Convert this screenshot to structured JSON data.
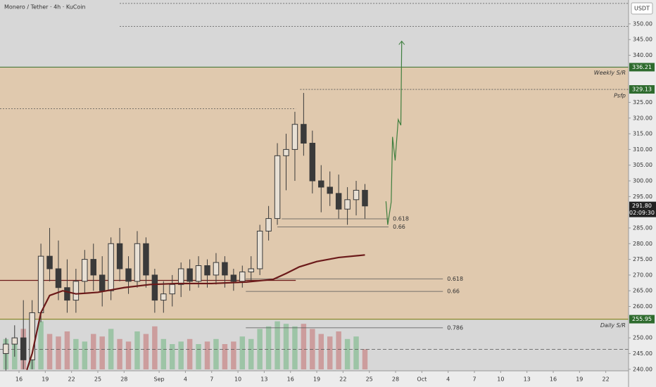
{
  "chart_data": {
    "type": "candlestick",
    "title": "Monero / Tether · 4h · KuCoin",
    "currency": "USDT",
    "xlim": [
      -2.17,
      69.6
    ],
    "ylim": [
      239.5,
      357.6
    ],
    "xticks": [
      {
        "value": 0,
        "label": "16"
      },
      {
        "value": 3,
        "label": "19"
      },
      {
        "value": 6,
        "label": "22"
      },
      {
        "value": 9,
        "label": "25"
      },
      {
        "value": 12,
        "label": "28"
      },
      {
        "value": 16,
        "label": "Sep"
      },
      {
        "value": 19,
        "label": "4"
      },
      {
        "value": 22,
        "label": "7"
      },
      {
        "value": 25,
        "label": "10"
      },
      {
        "value": 28,
        "label": "13"
      },
      {
        "value": 31,
        "label": "16"
      },
      {
        "value": 34,
        "label": "19"
      },
      {
        "value": 37,
        "label": "22"
      },
      {
        "value": 40,
        "label": "25"
      },
      {
        "value": 43,
        "label": "28"
      },
      {
        "value": 46,
        "label": "Oct"
      },
      {
        "value": 49,
        "label": "4"
      },
      {
        "value": 52,
        "label": "7"
      },
      {
        "value": 55,
        "label": "10"
      },
      {
        "value": 58,
        "label": "13"
      },
      {
        "value": 61,
        "label": "16"
      },
      {
        "value": 64,
        "label": "19"
      },
      {
        "value": 67,
        "label": "22"
      }
    ],
    "yticks": [
      {
        "value": 240,
        "label": "240.00"
      },
      {
        "value": 245,
        "label": "245.00"
      },
      {
        "value": 250,
        "label": "250.00"
      },
      {
        "value": 260,
        "label": "260.00"
      },
      {
        "value": 265,
        "label": "265.00"
      },
      {
        "value": 270,
        "label": "270.00"
      },
      {
        "value": 275,
        "label": "275.00"
      },
      {
        "value": 280,
        "label": "280.00"
      },
      {
        "value": 285,
        "label": "285.00"
      },
      {
        "value": 295,
        "label": "295.00"
      },
      {
        "value": 300,
        "label": "300.00"
      },
      {
        "value": 305,
        "label": "305.00"
      },
      {
        "value": 310,
        "label": "310.00"
      },
      {
        "value": 315,
        "label": "315.00"
      },
      {
        "value": 320,
        "label": "320.00"
      },
      {
        "value": 325,
        "label": "325.00"
      },
      {
        "value": 340,
        "label": "340.00"
      },
      {
        "value": 345,
        "label": "345.00"
      },
      {
        "value": 350,
        "label": "350.00"
      }
    ],
    "candle_color": "#3a3a3a",
    "volume_up_color": "#8fbf9a",
    "volume_down_color": "#c98f8f",
    "zone_color": "rgba(232,190,140,0.55)",
    "x": [
      -1.5,
      -0.5,
      0.5,
      1.5,
      2.5,
      3.5,
      4.5,
      5.5,
      6.5,
      7.5,
      8.5,
      9.5,
      10.5,
      11.5,
      12.5,
      13.5,
      14.5,
      15.5,
      16.5,
      17.5,
      18.5,
      19.5,
      20.5,
      21.5,
      22.5,
      23.5,
      24.5,
      25.5,
      26.5,
      27.5,
      28.5,
      29.5,
      30.5,
      31.5,
      32.5,
      33.5,
      34.5,
      35.5,
      36.5,
      37.5,
      38.5,
      39.5
    ],
    "open": [
      245,
      248,
      250,
      243,
      258,
      276,
      272,
      266,
      262,
      268,
      275,
      270,
      265,
      280,
      272,
      268,
      280,
      270,
      262,
      264,
      267,
      272,
      268,
      273,
      270,
      274,
      270,
      268,
      271,
      272,
      284,
      288,
      308,
      310,
      318,
      312,
      300,
      298,
      296,
      291,
      294,
      297
    ],
    "high": [
      250,
      254,
      262,
      262,
      280,
      285,
      281,
      275,
      272,
      278,
      280,
      276,
      282,
      285,
      276,
      284,
      282,
      272,
      268,
      270,
      274,
      275,
      276,
      275,
      277,
      276,
      272,
      273,
      276,
      286,
      292,
      312,
      315,
      322,
      328,
      316,
      305,
      303,
      302,
      298,
      300,
      299
    ],
    "low": [
      238,
      244,
      240,
      240,
      255,
      268,
      262,
      258,
      258,
      264,
      265,
      260,
      262,
      268,
      264,
      266,
      266,
      258,
      258,
      260,
      263,
      265,
      266,
      266,
      267,
      266,
      265,
      266,
      268,
      270,
      281,
      286,
      297,
      300,
      308,
      296,
      290,
      292,
      288,
      286,
      289,
      288
    ],
    "close": [
      248,
      250,
      243,
      258,
      276,
      272,
      266,
      262,
      268,
      275,
      270,
      265,
      280,
      272,
      268,
      280,
      270,
      262,
      264,
      267,
      272,
      268,
      273,
      270,
      274,
      270,
      268,
      271,
      272,
      284,
      288,
      308,
      310,
      318,
      312,
      300,
      298,
      296,
      291,
      294,
      297,
      292
    ],
    "volume": [
      60,
      55,
      80,
      90,
      95,
      70,
      65,
      75,
      60,
      55,
      70,
      65,
      80,
      60,
      55,
      75,
      70,
      85,
      60,
      50,
      55,
      60,
      50,
      55,
      60,
      50,
      55,
      65,
      60,
      80,
      85,
      95,
      90,
      85,
      90,
      80,
      70,
      65,
      75,
      60,
      65,
      40
    ],
    "ma": {
      "x": [
        0.9,
        1.5,
        2.5,
        3.5,
        5,
        6.5,
        9,
        12,
        15,
        18,
        22,
        26,
        29,
        30.5,
        32,
        34,
        36.5,
        39.5
      ],
      "values": [
        239.8,
        245,
        258,
        263.5,
        265,
        264,
        264.5,
        266,
        267,
        267.3,
        267.3,
        267.8,
        268.6,
        270.5,
        272.6,
        274.3,
        275.6,
        276.4
      ]
    },
    "projection": {
      "x": [
        41.9,
        42.1,
        42.5,
        42.65,
        42.95,
        43.3,
        43.6,
        43.7
      ],
      "values": [
        293.5,
        286,
        293.3,
        314,
        306.5,
        319.5,
        317.7,
        344.5
      ]
    },
    "levels": [
      {
        "value": 356.5,
        "from": 11.5,
        "to": 69.6,
        "style": "dotted"
      },
      {
        "value": 349.2,
        "from": 11.5,
        "to": 69.6,
        "style": "dotted"
      },
      {
        "value": 336.21,
        "from": -2.17,
        "to": 69.6,
        "style": "solid",
        "color": "#4a7a3a",
        "label": "Weekly S/R",
        "label_at": "right",
        "badge": true,
        "zone": true
      },
      {
        "value": 329.13,
        "from": 32.1,
        "to": 69.6,
        "style": "dotted",
        "label": "Psfp",
        "label_at": "right-below",
        "badge": true
      },
      {
        "value": 323,
        "from": -2.17,
        "to": 31.6,
        "style": "dotted"
      },
      {
        "value": 268.3,
        "from": -2.17,
        "to": 31.6,
        "style": "solid",
        "color": "#6b1a1a"
      },
      {
        "value": 287.9,
        "from": 30,
        "to": 42.2,
        "style": "solid",
        "label": "0.618",
        "label_at": "end"
      },
      {
        "value": 285.3,
        "from": 29.5,
        "to": 42.2,
        "style": "solid",
        "label": "0.66",
        "label_at": "end"
      },
      {
        "value": 268.8,
        "from": 25.9,
        "to": 48.4,
        "style": "solid",
        "label": "0.618",
        "label_at": "end"
      },
      {
        "value": 264.8,
        "from": 25.9,
        "to": 48.4,
        "style": "solid",
        "label": "0.66",
        "label_at": "end"
      },
      {
        "value": 253.2,
        "from": 25.9,
        "to": 48.4,
        "style": "solid",
        "label": "0.786",
        "label_at": "end"
      },
      {
        "value": 255.95,
        "from": -2.17,
        "to": 69.6,
        "style": "solid",
        "color": "#8a8a2a",
        "label": "Daily S/R",
        "label_at": "right-below",
        "badge": true,
        "zone": true
      },
      {
        "value": 246.3,
        "from": -2.17,
        "to": 69.6,
        "style": "dashed"
      }
    ],
    "last_price": {
      "value": 291.8,
      "label": "291.80"
    },
    "countdown": "02:09:30"
  }
}
